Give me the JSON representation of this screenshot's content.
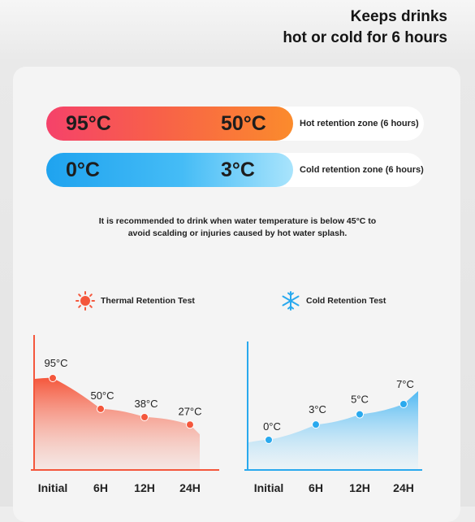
{
  "headline": {
    "line1": "Keeps drinks",
    "line2": "hot or cold for 6 hours"
  },
  "zones": {
    "hot": {
      "high": "95°C",
      "low": "50°C",
      "label": "Hot retention zone (6 hours)"
    },
    "cold": {
      "low": "0°C",
      "high": "3°C",
      "label": "Cold retention zone (6 hours)"
    }
  },
  "note": {
    "line1": "It is recommended to drink when water temperature is below 45°C to",
    "line2": "avoid scalding or injuries caused by hot water splash."
  },
  "legend": {
    "hot": {
      "label": "Thermal Retention Test",
      "icon": "sun-icon",
      "color": "#f4573c"
    },
    "cold": {
      "label": "Cold Retention Test",
      "icon": "snowflake-icon",
      "color": "#29a9ee"
    }
  },
  "chart_data": [
    {
      "type": "area",
      "title": "Thermal Retention Test",
      "categories": [
        "Initial",
        "6H",
        "12H",
        "24H"
      ],
      "values": [
        95,
        50,
        38,
        27
      ],
      "value_labels": [
        "95°C",
        "50°C",
        "38°C",
        "27°C"
      ],
      "color": "#f4573c"
    },
    {
      "type": "area",
      "title": "Cold Retention Test",
      "categories": [
        "Initial",
        "6H",
        "12H",
        "24H"
      ],
      "values": [
        0,
        3,
        5,
        7
      ],
      "value_labels": [
        "0°C",
        "3°C",
        "5°C",
        "7°C"
      ],
      "color": "#29a9ee"
    }
  ]
}
